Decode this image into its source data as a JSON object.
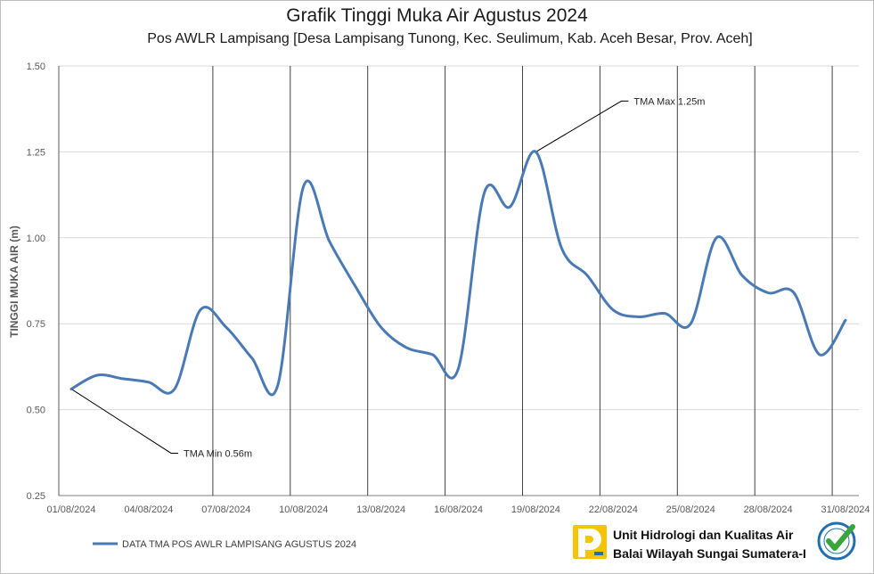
{
  "chart_data": {
    "type": "line",
    "title": "Grafik Tinggi Muka Air Agustus 2024",
    "subtitle": "Pos AWLR Lampisang [Desa Lampisang Tunong, Kec. Seulimum, Kab. Aceh Besar, Prov. Aceh]",
    "ylabel": "TINGGI MUKA AIR (m)",
    "xlabel": "",
    "ylim": [
      0.25,
      1.5
    ],
    "y_ticks": [
      "0.25",
      "0.50",
      "0.75",
      "1.00",
      "1.25",
      "1.50"
    ],
    "x_tick_labels": [
      "01/08/2024",
      "04/08/2024",
      "07/08/2024",
      "10/08/2024",
      "13/08/2024",
      "16/08/2024",
      "19/08/2024",
      "22/08/2024",
      "25/08/2024",
      "28/08/2024",
      "31/08/2024"
    ],
    "grid": {
      "horizontal": true,
      "vertical": true
    },
    "legend_position": "bottom-left",
    "series": [
      {
        "name": "DATA TMA POS AWLR LAMPISANG AGUSTUS 2024",
        "color": "#4a7ab5",
        "points": [
          [
            "01/08/2024",
            0.56
          ],
          [
            "02/08/2024",
            0.6
          ],
          [
            "03/08/2024",
            0.59
          ],
          [
            "04/08/2024",
            0.58
          ],
          [
            "05/08/2024",
            0.56
          ],
          [
            "06/08/2024",
            0.79
          ],
          [
            "07/08/2024",
            0.74
          ],
          [
            "08/08/2024",
            0.65
          ],
          [
            "09/08/2024",
            0.57
          ],
          [
            "10/08/2024",
            1.15
          ],
          [
            "11/08/2024",
            0.99
          ],
          [
            "12/08/2024",
            0.86
          ],
          [
            "13/08/2024",
            0.74
          ],
          [
            "14/08/2024",
            0.68
          ],
          [
            "15/08/2024",
            0.66
          ],
          [
            "16/08/2024",
            0.62
          ],
          [
            "17/08/2024",
            1.13
          ],
          [
            "18/08/2024",
            1.09
          ],
          [
            "19/08/2024",
            1.25
          ],
          [
            "20/08/2024",
            0.97
          ],
          [
            "21/08/2024",
            0.89
          ],
          [
            "22/08/2024",
            0.79
          ],
          [
            "23/08/2024",
            0.77
          ],
          [
            "24/08/2024",
            0.78
          ],
          [
            "25/08/2024",
            0.75
          ],
          [
            "26/08/2024",
            1.0
          ],
          [
            "27/08/2024",
            0.89
          ],
          [
            "28/08/2024",
            0.84
          ],
          [
            "29/08/2024",
            0.84
          ],
          [
            "30/08/2024",
            0.66
          ],
          [
            "31/08/2024",
            0.76
          ]
        ]
      }
    ],
    "annotations": [
      {
        "label": "TMA Max 1.25m",
        "target_date": "19/08/2024",
        "target_value": 1.25
      },
      {
        "label": "TMA Min 0.56m",
        "target_date": "01/08/2024",
        "target_value": 0.56
      }
    ]
  },
  "footer": {
    "org_line1": "Unit Hidrologi dan Kualitas Air",
    "org_line2": "Balai Wilayah Sungai Sumatera-I",
    "logo_left_icon": "pupr-logo-icon",
    "logo_right_icon": "certified-badge-icon",
    "brand_yellow": "#f5c400",
    "brand_blue": "#1f6fb2",
    "check_green": "#3aa53a"
  }
}
